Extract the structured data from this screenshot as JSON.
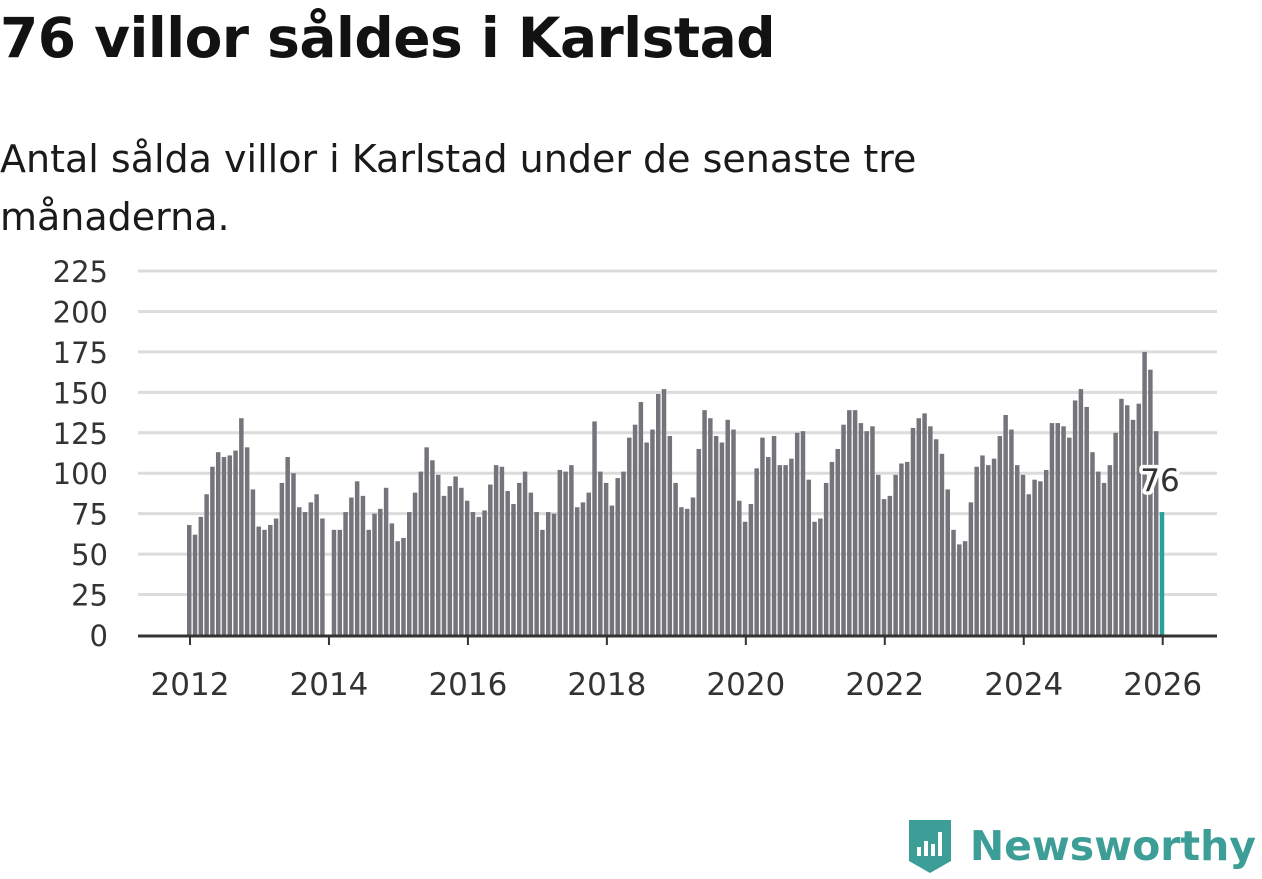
{
  "title": "76 villor såldes i Karlstad",
  "subtitle": "Antal sålda villor i Karlstad under de senaste tre månaderna.",
  "brand": {
    "name": "Newsworthy",
    "color": "#3c9e97"
  },
  "colors": {
    "bar": "#75747a",
    "highlight": "#2aa198",
    "grid": "#dcdcdc",
    "axis": "#333333"
  },
  "chart_data": {
    "type": "bar",
    "title": "76 villor såldes i Karlstad",
    "xlabel": "",
    "ylabel": "",
    "ylim": [
      0,
      225
    ],
    "yticks": [
      0,
      25,
      50,
      75,
      100,
      125,
      150,
      175,
      200,
      225
    ],
    "xticks": [
      "2012",
      "2014",
      "2016",
      "2018",
      "2020",
      "2022",
      "2024",
      "2026"
    ],
    "start": "2012-01",
    "grid": true,
    "highlight_label": "76",
    "values": [
      68,
      62,
      73,
      87,
      104,
      113,
      110,
      111,
      114,
      134,
      116,
      90,
      67,
      65,
      68,
      72,
      94,
      110,
      100,
      79,
      76,
      82,
      87,
      72,
      null,
      65,
      65,
      76,
      85,
      95,
      86,
      65,
      75,
      78,
      91,
      69,
      58,
      60,
      76,
      88,
      101,
      116,
      108,
      99,
      86,
      92,
      98,
      91,
      83,
      76,
      73,
      77,
      93,
      105,
      104,
      89,
      81,
      94,
      101,
      88,
      76,
      65,
      76,
      75,
      102,
      101,
      105,
      79,
      82,
      88,
      132,
      101,
      94,
      80,
      97,
      101,
      122,
      130,
      144,
      119,
      127,
      149,
      152,
      123,
      94,
      79,
      78,
      85,
      115,
      139,
      134,
      123,
      119,
      133,
      127,
      83,
      70,
      81,
      103,
      122,
      110,
      123,
      105,
      105,
      109,
      125,
      126,
      96,
      70,
      72,
      94,
      107,
      115,
      130,
      139,
      139,
      131,
      126,
      129,
      99,
      84,
      86,
      99,
      106,
      107,
      128,
      134,
      137,
      129,
      121,
      112,
      90,
      65,
      56,
      58,
      82,
      104,
      111,
      105,
      109,
      123,
      136,
      127,
      105,
      99,
      87,
      96,
      95,
      102,
      131,
      131,
      129,
      122,
      145,
      152,
      141,
      113,
      101,
      94,
      105,
      125,
      146,
      142,
      133,
      143,
      175,
      164,
      126,
      76
    ]
  }
}
